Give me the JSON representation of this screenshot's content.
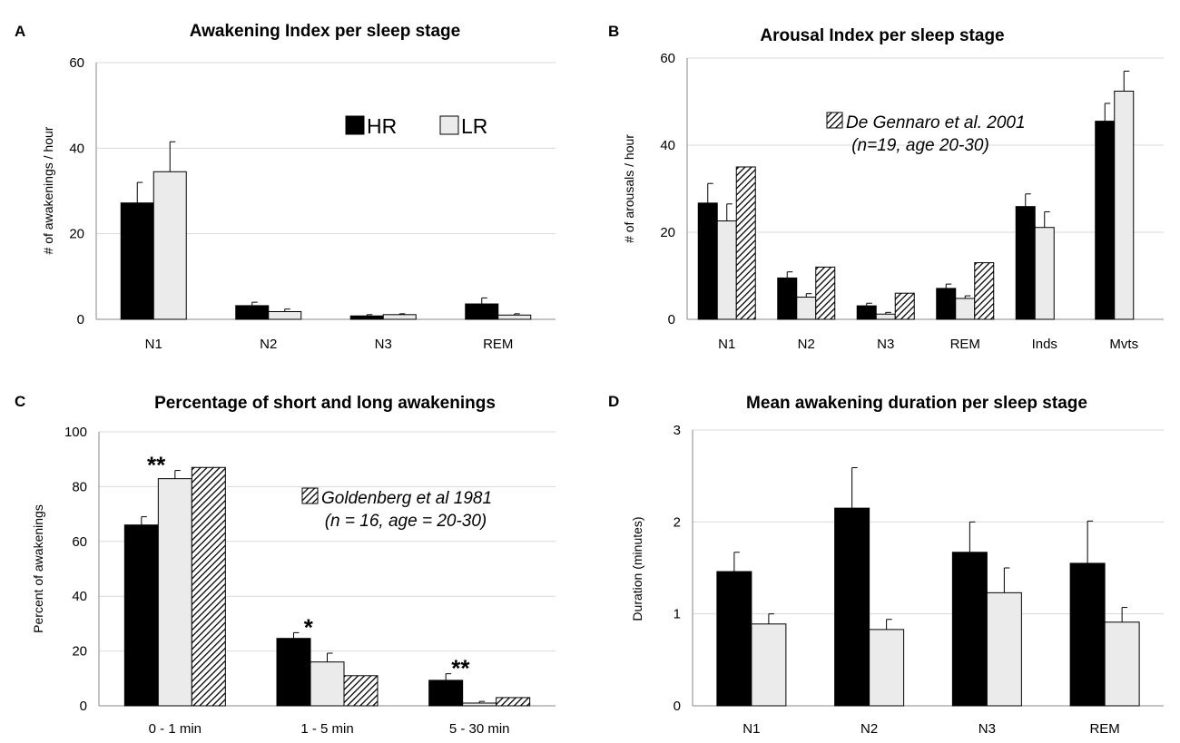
{
  "colors": {
    "HR": "#000000",
    "LR": "#ebebeb",
    "ref": "hatch",
    "grid": "#d9d9d9",
    "axis": "#888888"
  },
  "chart_data": [
    {
      "panel": "A",
      "type": "bar",
      "title": "Awakening Index per sleep stage",
      "ylabel": "# of awakenings / hour",
      "xlabel": "",
      "ylim": [
        0,
        60
      ],
      "yticks": [
        0,
        20,
        40,
        60
      ],
      "categories": [
        "N1",
        "N2",
        "N3",
        "REM"
      ],
      "series": [
        {
          "name": "HR",
          "style": "HR",
          "values": [
            27.2,
            3.2,
            0.8,
            3.6
          ],
          "errors": [
            4.8,
            0.8,
            0.3,
            1.4
          ]
        },
        {
          "name": "LR",
          "style": "LR",
          "values": [
            34.5,
            1.8,
            1.1,
            1.0
          ],
          "errors": [
            7.0,
            0.6,
            0.2,
            0.3
          ]
        }
      ],
      "legend": {
        "placement": "top-right",
        "entries": [
          "HR",
          "LR"
        ]
      }
    },
    {
      "panel": "B",
      "type": "bar",
      "title": "Arousal Index per sleep stage",
      "ylabel": "# of arousals / hour",
      "xlabel": "",
      "ylim": [
        0,
        60
      ],
      "yticks": [
        0,
        20,
        40,
        60
      ],
      "categories": [
        "N1",
        "N2",
        "N3",
        "REM",
        "Inds",
        "Mvts"
      ],
      "series": [
        {
          "name": "HR",
          "style": "HR",
          "values": [
            26.7,
            9.5,
            3.1,
            7.1,
            25.9,
            45.5
          ],
          "errors": [
            4.5,
            1.4,
            0.6,
            1.0,
            2.9,
            4.1
          ]
        },
        {
          "name": "LR",
          "style": "LR",
          "values": [
            22.6,
            5.1,
            1.2,
            4.8,
            21.1,
            52.4
          ],
          "errors": [
            3.9,
            0.8,
            0.4,
            0.6,
            3.6,
            4.6
          ]
        },
        {
          "name": "De Gennaro et al. 2001",
          "style": "ref",
          "values": [
            35.0,
            12.0,
            6.0,
            13.0,
            null,
            null
          ],
          "errors": [
            0,
            0,
            0,
            0,
            0,
            0
          ]
        }
      ],
      "legend": {
        "placement": "top-right",
        "entries": [
          "De Gennaro et al. 2001",
          "(n=19, age 20-30)"
        ]
      }
    },
    {
      "panel": "C",
      "type": "bar",
      "title": "Percentage of short and long awakenings",
      "ylabel": "Percent of awakenings",
      "xlabel": "",
      "ylim": [
        0,
        100
      ],
      "yticks": [
        0,
        20,
        40,
        60,
        80,
        100
      ],
      "categories": [
        "0 - 1 min",
        "1 - 5 min",
        "5 - 30 min"
      ],
      "series": [
        {
          "name": "HR",
          "style": "HR",
          "values": [
            66.0,
            24.6,
            9.3
          ],
          "errors": [
            3.0,
            2.1,
            2.4
          ]
        },
        {
          "name": "LR",
          "style": "LR",
          "values": [
            82.9,
            16.0,
            1.0
          ],
          "errors": [
            3.0,
            3.2,
            0.6
          ]
        },
        {
          "name": "Goldenberg et al 1981",
          "style": "ref",
          "values": [
            87.0,
            11.0,
            3.0
          ],
          "errors": [
            0,
            0,
            0
          ]
        }
      ],
      "significance": [
        "**",
        "*",
        "**"
      ],
      "legend": {
        "placement": "top-right",
        "entries": [
          "Goldenberg et al 1981",
          "(n = 16, age = 20-30)"
        ]
      }
    },
    {
      "panel": "D",
      "type": "bar",
      "title": "Mean awakening duration per sleep stage",
      "ylabel": "Duration (minutes)",
      "xlabel": "",
      "ylim": [
        0,
        3
      ],
      "yticks": [
        0,
        1,
        2,
        3
      ],
      "categories": [
        "N1",
        "N2",
        "N3",
        "REM"
      ],
      "series": [
        {
          "name": "HR",
          "style": "HR",
          "values": [
            1.46,
            2.15,
            1.67,
            1.55
          ],
          "errors": [
            0.21,
            0.44,
            0.33,
            0.46
          ]
        },
        {
          "name": "LR",
          "style": "LR",
          "values": [
            0.89,
            0.83,
            1.23,
            0.91
          ],
          "errors": [
            0.11,
            0.11,
            0.27,
            0.16
          ]
        }
      ],
      "legend": {
        "placement": "none",
        "entries": []
      }
    }
  ]
}
